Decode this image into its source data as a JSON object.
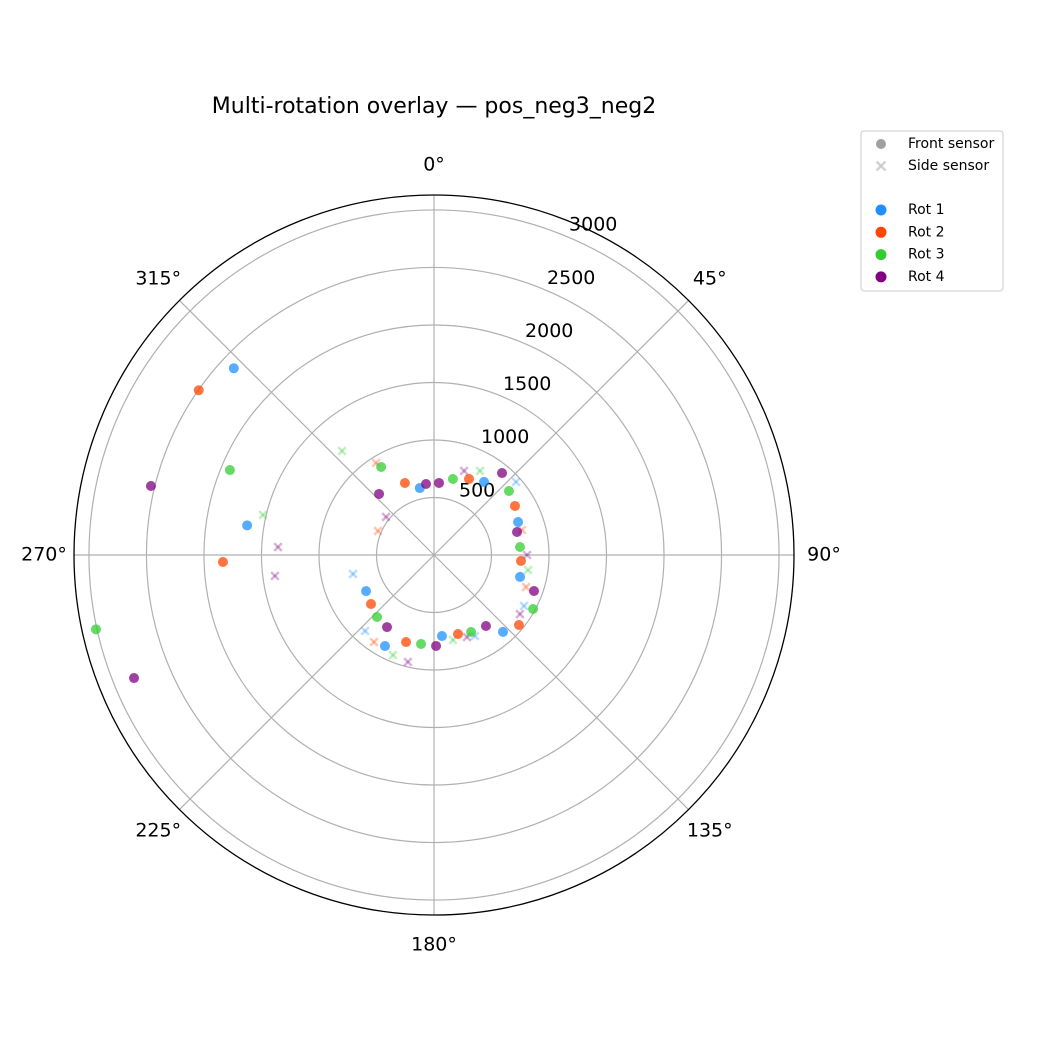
{
  "chart_data": {
    "type": "polar-scatter",
    "title": "Multi-rotation overlay — pos_neg3_neg2",
    "rlim": [
      0,
      3130
    ],
    "rticks": [
      500,
      1000,
      1500,
      2000,
      2500,
      3000
    ],
    "thetaticks": [
      {
        "value": 0,
        "label": "0°"
      },
      {
        "value": 45,
        "label": "45°"
      },
      {
        "value": 90,
        "label": "90°"
      },
      {
        "value": 135,
        "label": "135°"
      },
      {
        "value": 180,
        "label": "180°"
      },
      {
        "value": 225,
        "label": "225°"
      },
      {
        "value": 270,
        "label": "270°"
      },
      {
        "value": 315,
        "label": "315°"
      }
    ],
    "theta_zero": "N",
    "theta_direction": "clockwise",
    "grid": true,
    "legend_position": "upper right outside",
    "markers": [
      {
        "name": "Front sensor",
        "marker": "circle",
        "color": "#808080"
      },
      {
        "name": "Side sensor",
        "marker": "x",
        "color": "#c8c8c8"
      }
    ],
    "series": [
      {
        "name": "Rot 1",
        "color": "#1e90ff",
        "front": {
          "theta": [
            313,
            279,
            348,
            34.4,
            68.6,
            104.3,
            138.1,
            174.4,
            208.3,
            242
          ],
          "r": [
            2380,
            1645,
            595,
            770,
            785,
            772,
            898,
            708,
            899,
            669
          ]
        },
        "side": {
          "theta": [
            256.8,
            222.2,
            48.3,
            119.5,
            153.2
          ],
          "r": [
            723,
            892,
            955,
            899,
            789
          ]
        }
      },
      {
        "name": "Rot 2",
        "color": "#ff4500",
        "front": {
          "theta": [
            305,
            268.1,
            338,
            24.7,
            58.8,
            93.9,
            129.5,
            163.1,
            197.8,
            232.1
          ],
          "r": [
            2497,
            1836,
            675,
            728,
            823,
            758,
            957,
            718,
            795,
            694
          ]
        },
        "side": {
          "theta": [
            327.8,
            293.2,
            214.6,
            74.1,
            109.2
          ],
          "r": [
            946,
            530,
            919,
            795,
            847
          ]
        }
      },
      {
        "name": "Rot 3",
        "color": "#32cd32",
        "front": {
          "theta": [
            257.6,
            292.6,
            329,
            14,
            49.5,
            84.7,
            118.6,
            154.3,
            188.3,
            222.6
          ],
          "r": [
            3009,
            1922,
            893,
            681,
            857,
            751,
            981,
            743,
            782,
            732
          ]
        },
        "side": {
          "theta": [
            318.5,
            283.2,
            28.7,
            99.1,
            167.4,
            202.3
          ],
          "r": [
            1207,
            1527,
            833,
            828,
            757,
            940
          ]
        }
      },
      {
        "name": "Rot 4",
        "color": "#800080",
        "front": {
          "theta": [
            283.7,
            247.7,
            318,
            353.6,
            4,
            39.7,
            74.5,
            109.8,
            143.8,
            178.7,
            213.1
          ],
          "r": [
            2533,
            2819,
            714,
            621,
            628,
            926,
            749,
            924,
            765,
            791,
            748
          ]
        },
        "side": {
          "theta": [
            272.9,
            262.5,
            308.4,
            19.7,
            90,
            124.5,
            158.1,
            193.7
          ],
          "r": [
            1358,
            1395,
            532,
            776,
            809,
            907,
            769,
            957
          ]
        }
      }
    ]
  }
}
